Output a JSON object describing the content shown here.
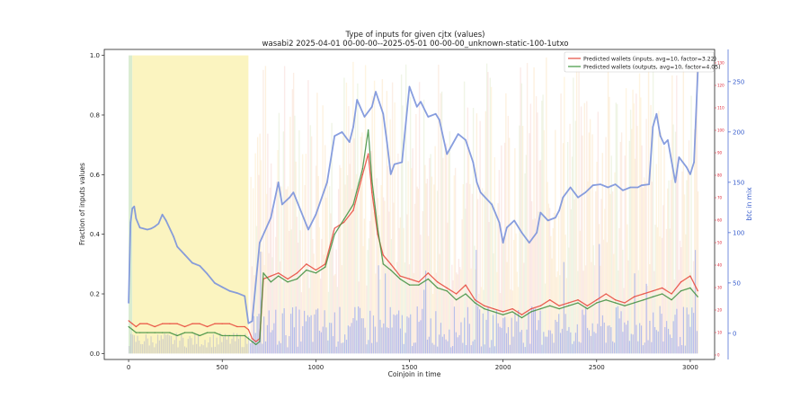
{
  "chart_data": {
    "type": "line",
    "title": "Type of inputs for given cjtx (values)",
    "subtitle": "wasabi2 2025-04-01 00-00-00--2025-05-01 00-00-00_unknown-static-100-1utxo",
    "xlabel": "Coinjoin in time",
    "ylabel": "Fraction of inputs values",
    "ylabel_right_outer": "btc in mix",
    "xlim": [
      -130,
      3130
    ],
    "ylim": [
      -0.02,
      1.02
    ],
    "y_right_outer_lim": [
      -26,
      282
    ],
    "y_right_inner_lim": [
      -2,
      136
    ],
    "x_ticks": [
      "0",
      "500",
      "1000",
      "1500",
      "2000",
      "2500",
      "3000"
    ],
    "y_ticks": [
      "0.0",
      "0.2",
      "0.4",
      "0.6",
      "0.8",
      "1.0"
    ],
    "y_right_outer_ticks": [
      "0",
      "50",
      "100",
      "150",
      "200",
      "250"
    ],
    "y_right_inner_ticks": [
      "0",
      "10",
      "20",
      "30",
      "40",
      "50",
      "60",
      "70",
      "80",
      "90",
      "100",
      "110",
      "120",
      "130"
    ],
    "legend_position": "top-right",
    "legend": [
      {
        "label": "Predicted wallets (inputs, avg=10, factor=3.22)",
        "color": "#e8655a"
      },
      {
        "label": "Predicted wallets (outputs, avg=10, factor=4.05)",
        "color": "#5aa55a"
      }
    ],
    "series": [
      {
        "name": "Predicted wallets (inputs, avg=10, factor=3.22)",
        "color": "#e8473b",
        "x": [
          0,
          20,
          40,
          60,
          100,
          140,
          180,
          220,
          260,
          300,
          340,
          380,
          420,
          460,
          500,
          540,
          580,
          620,
          640,
          660,
          680,
          700,
          720,
          760,
          800,
          850,
          900,
          950,
          1000,
          1050,
          1100,
          1150,
          1200,
          1250,
          1280,
          1300,
          1330,
          1360,
          1400,
          1450,
          1500,
          1550,
          1600,
          1650,
          1700,
          1750,
          1800,
          1850,
          1900,
          1950,
          2000,
          2050,
          2100,
          2150,
          2200,
          2250,
          2300,
          2350,
          2400,
          2450,
          2500,
          2550,
          2600,
          2650,
          2700,
          2750,
          2800,
          2850,
          2900,
          2950,
          3000,
          3040
        ],
        "y": [
          0.11,
          0.1,
          0.09,
          0.1,
          0.1,
          0.09,
          0.1,
          0.1,
          0.1,
          0.09,
          0.1,
          0.1,
          0.09,
          0.1,
          0.1,
          0.1,
          0.09,
          0.09,
          0.08,
          0.05,
          0.04,
          0.05,
          0.25,
          0.26,
          0.27,
          0.25,
          0.27,
          0.3,
          0.28,
          0.3,
          0.42,
          0.44,
          0.48,
          0.6,
          0.67,
          0.54,
          0.4,
          0.33,
          0.3,
          0.26,
          0.25,
          0.24,
          0.27,
          0.24,
          0.22,
          0.2,
          0.23,
          0.18,
          0.16,
          0.15,
          0.14,
          0.15,
          0.13,
          0.15,
          0.16,
          0.18,
          0.16,
          0.17,
          0.18,
          0.16,
          0.18,
          0.2,
          0.18,
          0.17,
          0.19,
          0.2,
          0.21,
          0.22,
          0.2,
          0.24,
          0.26,
          0.21
        ]
      },
      {
        "name": "Predicted wallets (outputs, avg=10, factor=4.05)",
        "color": "#3f8f3f",
        "x": [
          0,
          20,
          40,
          60,
          100,
          140,
          180,
          220,
          260,
          300,
          340,
          380,
          420,
          460,
          500,
          540,
          580,
          620,
          640,
          660,
          680,
          700,
          720,
          760,
          800,
          850,
          900,
          950,
          1000,
          1050,
          1100,
          1150,
          1200,
          1250,
          1280,
          1300,
          1330,
          1360,
          1400,
          1450,
          1500,
          1550,
          1600,
          1650,
          1700,
          1750,
          1800,
          1850,
          1900,
          1950,
          2000,
          2050,
          2100,
          2150,
          2200,
          2250,
          2300,
          2350,
          2400,
          2450,
          2500,
          2550,
          2600,
          2650,
          2700,
          2750,
          2800,
          2850,
          2900,
          2950,
          3000,
          3040
        ],
        "y": [
          0.09,
          0.08,
          0.07,
          0.07,
          0.07,
          0.07,
          0.07,
          0.07,
          0.06,
          0.07,
          0.07,
          0.06,
          0.07,
          0.07,
          0.06,
          0.06,
          0.06,
          0.06,
          0.05,
          0.04,
          0.03,
          0.04,
          0.27,
          0.24,
          0.26,
          0.24,
          0.25,
          0.28,
          0.27,
          0.29,
          0.4,
          0.45,
          0.5,
          0.62,
          0.75,
          0.58,
          0.42,
          0.3,
          0.28,
          0.25,
          0.23,
          0.23,
          0.25,
          0.22,
          0.21,
          0.18,
          0.2,
          0.17,
          0.15,
          0.14,
          0.13,
          0.14,
          0.12,
          0.14,
          0.15,
          0.16,
          0.15,
          0.16,
          0.17,
          0.15,
          0.17,
          0.18,
          0.17,
          0.16,
          0.17,
          0.18,
          0.19,
          0.2,
          0.18,
          0.21,
          0.22,
          0.19
        ]
      },
      {
        "name": "",
        "axis": "right_outer",
        "color": "#7b93dc",
        "x": [
          0,
          10,
          20,
          30,
          40,
          60,
          80,
          100,
          120,
          140,
          160,
          180,
          200,
          240,
          260,
          300,
          340,
          380,
          420,
          460,
          500,
          540,
          580,
          620,
          640,
          660,
          700,
          760,
          800,
          820,
          860,
          880,
          960,
          1000,
          1060,
          1100,
          1140,
          1180,
          1200,
          1220,
          1260,
          1300,
          1320,
          1360,
          1380,
          1400,
          1420,
          1460,
          1500,
          1540,
          1560,
          1600,
          1640,
          1660,
          1700,
          1760,
          1800,
          1840,
          1860,
          1880,
          1940,
          1980,
          2000,
          2020,
          2060,
          2100,
          2140,
          2180,
          2200,
          2240,
          2280,
          2300,
          2320,
          2360,
          2400,
          2440,
          2480,
          2520,
          2560,
          2600,
          2640,
          2680,
          2720,
          2740,
          2780,
          2800,
          2820,
          2840,
          2860,
          2880,
          2920,
          2940,
          2980,
          3000,
          3020,
          3040
        ],
        "y": [
          30,
          110,
          124,
          126,
          114,
          105,
          104,
          103,
          104,
          106,
          109,
          118,
          112,
          96,
          86,
          78,
          70,
          67,
          59,
          50,
          46,
          42,
          40,
          37,
          10,
          12,
          90,
          115,
          150,
          128,
          135,
          140,
          103,
          118,
          150,
          196,
          200,
          190,
          205,
          232,
          215,
          225,
          240,
          218,
          190,
          158,
          168,
          170,
          245,
          225,
          230,
          215,
          218,
          212,
          178,
          198,
          192,
          170,
          150,
          140,
          128,
          110,
          90,
          105,
          112,
          100,
          90,
          100,
          120,
          112,
          115,
          122,
          135,
          145,
          135,
          140,
          147,
          148,
          145,
          148,
          142,
          145,
          145,
          147,
          148,
          205,
          218,
          196,
          188,
          192,
          150,
          175,
          165,
          158,
          170,
          260
        ]
      }
    ]
  }
}
